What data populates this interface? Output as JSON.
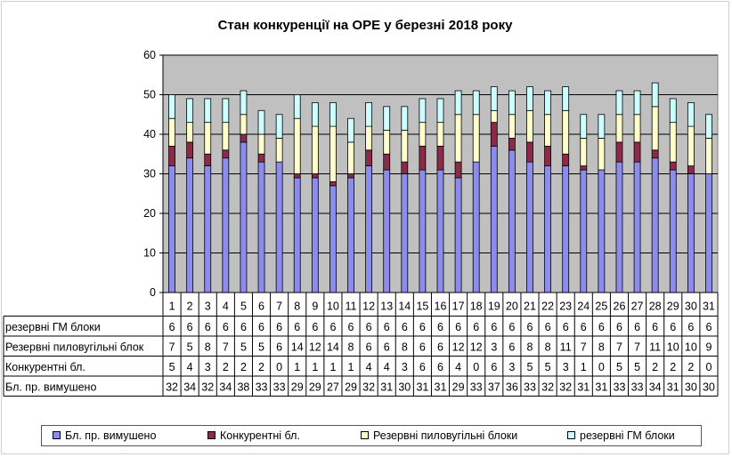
{
  "chart_data": {
    "type": "bar",
    "stacked": true,
    "title": "Стан конкуренції на ОРЕ  у березні 2018 року",
    "categories": [
      "1",
      "2",
      "3",
      "4",
      "5",
      "6",
      "7",
      "8",
      "9",
      "10",
      "11",
      "12",
      "13",
      "14",
      "15",
      "16",
      "17",
      "18",
      "19",
      "20",
      "21",
      "22",
      "23",
      "24",
      "25",
      "26",
      "27",
      "28",
      "29",
      "30",
      "31"
    ],
    "ylim": [
      0,
      60
    ],
    "yticks": [
      "0",
      "10",
      "20",
      "30",
      "40",
      "50",
      "60"
    ],
    "grid": true,
    "legend_position": "bottom",
    "plot_background": "#c0c0c0",
    "series": [
      {
        "name": "Бл. пр. вимушено",
        "color": "#8c8cec",
        "values": [
          32,
          34,
          32,
          34,
          38,
          33,
          33,
          29,
          29,
          27,
          29,
          32,
          31,
          30,
          31,
          31,
          29,
          33,
          37,
          36,
          33,
          32,
          32,
          31,
          31,
          33,
          33,
          34,
          31,
          30,
          30
        ]
      },
      {
        "name": "Конкурентні бл.",
        "color": "#8c2a4a",
        "values": [
          5,
          4,
          3,
          2,
          2,
          2,
          0,
          1,
          1,
          1,
          1,
          4,
          4,
          3,
          6,
          6,
          4,
          0,
          6,
          3,
          5,
          5,
          3,
          1,
          0,
          5,
          5,
          2,
          2,
          2,
          0
        ]
      },
      {
        "name": "Резервні пиловугільні блоки",
        "color": "#ffffcc",
        "values": [
          7,
          5,
          8,
          7,
          5,
          5,
          6,
          14,
          12,
          14,
          8,
          6,
          6,
          8,
          6,
          6,
          12,
          12,
          3,
          6,
          8,
          8,
          11,
          7,
          8,
          7,
          7,
          11,
          10,
          10,
          9
        ]
      },
      {
        "name": "резервні ГМ блоки",
        "color": "#ccffff",
        "values": [
          6,
          6,
          6,
          6,
          6,
          6,
          6,
          6,
          6,
          6,
          6,
          6,
          6,
          6,
          6,
          6,
          6,
          6,
          6,
          6,
          6,
          6,
          6,
          6,
          6,
          6,
          6,
          6,
          6,
          6,
          6
        ]
      }
    ],
    "table_rows": [
      {
        "label": "резервні ГМ блоки",
        "series_index": 3
      },
      {
        "label": "Резервні пиловугільні блок",
        "series_index": 2
      },
      {
        "label": "Конкурентні бл.",
        "series_index": 1
      },
      {
        "label": "Бл. пр. вимушено",
        "series_index": 0
      }
    ]
  }
}
